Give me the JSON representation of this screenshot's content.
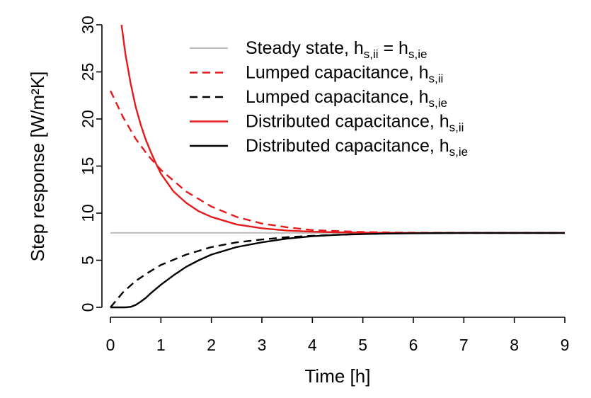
{
  "chart_data": {
    "type": "line",
    "xlabel": "Time [h]",
    "ylabel": "Step response [W/m²K]",
    "xlim": [
      0,
      9
    ],
    "ylim": [
      0,
      30
    ],
    "x_ticks": [
      "0",
      "1",
      "2",
      "3",
      "4",
      "5",
      "6",
      "7",
      "8",
      "9"
    ],
    "y_ticks": [
      "0",
      "5",
      "10",
      "15",
      "20",
      "25",
      "30"
    ],
    "legend_position": "top-right",
    "series": [
      {
        "name": "Steady state",
        "legend_prefix": "Steady state, h",
        "legend_sub1": "s,ii",
        "legend_mid": " = h",
        "legend_sub2": "s,ie",
        "color": "#bbbbbb",
        "dash": "solid",
        "x": [
          0,
          9
        ],
        "y": [
          7.9,
          7.9
        ]
      },
      {
        "name": "Lumped capacitance, hs,ii",
        "legend_prefix": "Lumped capacitance, h",
        "legend_sub1": "s,ii",
        "color": "#e41a1c",
        "dash": "dashed",
        "x": [
          0,
          0.25,
          0.5,
          0.75,
          1,
          1.5,
          2,
          2.5,
          3,
          3.5,
          4,
          4.5,
          5,
          5.5,
          6,
          7,
          8,
          9
        ],
        "y": [
          23.0,
          20.2,
          17.9,
          16.1,
          14.6,
          12.3,
          10.7,
          9.6,
          8.9,
          8.5,
          8.2,
          8.1,
          8.0,
          7.95,
          7.93,
          7.9,
          7.9,
          7.9
        ]
      },
      {
        "name": "Lumped capacitance, hs,ie",
        "legend_prefix": "Lumped capacitance, h",
        "legend_sub1": "s,ie",
        "color": "#000000",
        "dash": "dashed",
        "x": [
          0,
          0.25,
          0.5,
          0.75,
          1,
          1.5,
          2,
          2.5,
          3,
          3.5,
          4,
          4.5,
          5,
          5.5,
          6,
          7,
          8,
          9
        ],
        "y": [
          0.0,
          1.6,
          2.8,
          3.7,
          4.5,
          5.6,
          6.4,
          6.9,
          7.2,
          7.45,
          7.6,
          7.7,
          7.8,
          7.85,
          7.88,
          7.9,
          7.9,
          7.9
        ]
      },
      {
        "name": "Distributed capacitance, hs,ii",
        "legend_prefix": "Distributed capacitance, h",
        "legend_sub1": "s,ii",
        "color": "#e41a1c",
        "dash": "solid",
        "x": [
          0.22,
          0.3,
          0.4,
          0.5,
          0.6,
          0.7,
          0.8,
          0.9,
          1,
          1.25,
          1.5,
          1.75,
          2,
          2.5,
          3,
          3.5,
          4,
          4.5,
          5,
          5.5,
          6,
          7,
          8,
          9
        ],
        "y": [
          30.0,
          26.8,
          23.8,
          21.3,
          19.4,
          17.8,
          16.5,
          15.3,
          14.2,
          12.3,
          11.1,
          10.2,
          9.6,
          8.8,
          8.4,
          8.15,
          8.03,
          7.97,
          7.93,
          7.91,
          7.9,
          7.9,
          7.9,
          7.9
        ]
      },
      {
        "name": "Distributed capacitance, hs,ie",
        "legend_prefix": "Distributed capacitance, h",
        "legend_sub1": "s,ie",
        "color": "#000000",
        "dash": "solid",
        "x": [
          0,
          0.3,
          0.4,
          0.5,
          0.6,
          0.7,
          0.8,
          1,
          1.25,
          1.5,
          1.75,
          2,
          2.5,
          3,
          3.5,
          4,
          4.5,
          5,
          5.5,
          6,
          7,
          8,
          9
        ],
        "y": [
          0.0,
          0.0,
          0.05,
          0.25,
          0.6,
          1.0,
          1.5,
          2.4,
          3.4,
          4.3,
          5.0,
          5.6,
          6.4,
          6.9,
          7.3,
          7.55,
          7.7,
          7.78,
          7.83,
          7.86,
          7.9,
          7.9,
          7.9
        ]
      }
    ]
  }
}
